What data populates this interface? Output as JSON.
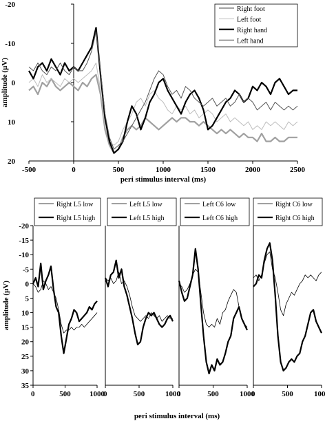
{
  "chart_data": [
    {
      "type": "line",
      "xlabel": "peri stimulus interval (ms)",
      "ylabel": "amplitude (µV)",
      "xlim": [
        -500,
        2500
      ],
      "ylim": [
        -20,
        20
      ],
      "y_inverted": true,
      "x_ticks": [
        -500,
        0,
        500,
        1000,
        1500,
        2000,
        2500
      ],
      "y_ticks": [
        -20,
        -10,
        0,
        10,
        20
      ],
      "y_tick_labels": [
        "-20",
        "-10",
        "0",
        "10",
        "20"
      ],
      "legend_position": "top-right",
      "series": [
        {
          "name": "Right foot",
          "color": "#a0a0a0",
          "width": 2.2,
          "x": [
            -500,
            -450,
            -400,
            -350,
            -300,
            -250,
            -200,
            -150,
            -100,
            -50,
            0,
            50,
            100,
            150,
            200,
            250,
            300,
            350,
            400,
            450,
            500,
            550,
            600,
            650,
            700,
            750,
            800,
            850,
            900,
            950,
            1000,
            1050,
            1100,
            1150,
            1200,
            1250,
            1300,
            1350,
            1400,
            1450,
            1500,
            1550,
            1600,
            1650,
            1700,
            1750,
            1800,
            1850,
            1900,
            1950,
            2000,
            2050,
            2100,
            2150,
            2200,
            2250,
            2300,
            2350,
            2400,
            2450,
            2500
          ],
          "y": [
            2,
            1,
            3,
            0,
            1,
            -1,
            1,
            2,
            1,
            0,
            1,
            2,
            0,
            1,
            -1,
            -2,
            3,
            12,
            16,
            18,
            17,
            14,
            12,
            11,
            12,
            11,
            9,
            10,
            11,
            12,
            11,
            10,
            9,
            10,
            9,
            9,
            10,
            10,
            11,
            10,
            11,
            12,
            13,
            12,
            13,
            12,
            13,
            14,
            13,
            14,
            14,
            15,
            13,
            15,
            15,
            14,
            15,
            15,
            14,
            14,
            14
          ]
        },
        {
          "name": "Left foot",
          "color": "#bdbdbd",
          "width": 1.0,
          "x": [
            -500,
            -450,
            -400,
            -350,
            -300,
            -250,
            -200,
            -150,
            -100,
            -50,
            0,
            50,
            100,
            150,
            200,
            250,
            300,
            350,
            400,
            450,
            500,
            550,
            600,
            650,
            700,
            750,
            800,
            850,
            900,
            950,
            1000,
            1050,
            1100,
            1150,
            1200,
            1250,
            1300,
            1350,
            1400,
            1450,
            1500,
            1550,
            1600,
            1650,
            1700,
            1750,
            1800,
            1850,
            1900,
            1950,
            2000,
            2050,
            2100,
            2150,
            2200,
            2250,
            2300,
            2350,
            2400,
            2450,
            2500
          ],
          "y": [
            0,
            -1,
            1,
            -2,
            0,
            -1,
            0,
            1,
            -1,
            0,
            -1,
            0,
            -1,
            -2,
            -3,
            -5,
            2,
            11,
            15,
            16,
            15,
            12,
            10,
            8,
            5,
            4,
            6,
            3,
            2,
            4,
            5,
            7,
            8,
            6,
            7,
            6,
            8,
            7,
            9,
            8,
            7,
            8,
            10,
            9,
            8,
            10,
            9,
            10,
            11,
            10,
            12,
            11,
            12,
            10,
            11,
            10,
            11,
            12,
            10,
            11,
            10
          ]
        },
        {
          "name": "Right hand",
          "color": "#000000",
          "width": 2.2,
          "x": [
            -500,
            -450,
            -400,
            -350,
            -300,
            -250,
            -200,
            -150,
            -100,
            -50,
            0,
            50,
            100,
            150,
            200,
            250,
            300,
            350,
            400,
            450,
            500,
            550,
            600,
            650,
            700,
            750,
            800,
            850,
            900,
            950,
            1000,
            1050,
            1100,
            1150,
            1200,
            1250,
            1300,
            1350,
            1400,
            1450,
            1500,
            1550,
            1600,
            1650,
            1700,
            1750,
            1800,
            1850,
            1900,
            1950,
            2000,
            2050,
            2100,
            2150,
            2200,
            2250,
            2300,
            2350,
            2400,
            2450,
            2500
          ],
          "y": [
            -3,
            -1,
            -4,
            -5,
            -3,
            -6,
            -4,
            -2,
            -5,
            -3,
            -4,
            -3,
            -5,
            -7,
            -9,
            -14,
            -2,
            9,
            15,
            18,
            17,
            15,
            10,
            6,
            8,
            12,
            9,
            5,
            3,
            0,
            -1,
            2,
            4,
            6,
            8,
            5,
            3,
            2,
            4,
            7,
            12,
            11,
            9,
            7,
            5,
            4,
            2,
            3,
            5,
            4,
            1,
            2,
            0,
            1,
            3,
            0,
            -1,
            1,
            3,
            2,
            2
          ]
        },
        {
          "name": "Left hand",
          "color": "#555555",
          "width": 1.0,
          "x": [
            -500,
            -450,
            -400,
            -350,
            -300,
            -250,
            -200,
            -150,
            -100,
            -50,
            0,
            50,
            100,
            150,
            200,
            250,
            300,
            350,
            400,
            450,
            500,
            550,
            600,
            650,
            700,
            750,
            800,
            850,
            900,
            950,
            1000,
            1050,
            1100,
            1150,
            1200,
            1250,
            1300,
            1350,
            1400,
            1450,
            1500,
            1550,
            1600,
            1650,
            1700,
            1750,
            1800,
            1850,
            1900,
            1950,
            2000,
            2050,
            2100,
            2150,
            2200,
            2250,
            2300,
            2350,
            2400,
            2450,
            2500
          ],
          "y": [
            -4,
            -3,
            -5,
            -3,
            -2,
            -4,
            -3,
            -5,
            -3,
            -2,
            -4,
            -3,
            -3,
            -5,
            -8,
            -13,
            -3,
            8,
            14,
            17,
            16,
            15,
            13,
            11,
            9,
            7,
            5,
            2,
            -1,
            -3,
            -2,
            1,
            3,
            2,
            4,
            1,
            2,
            4,
            5,
            6,
            5,
            4,
            6,
            5,
            4,
            6,
            5,
            3,
            5,
            4,
            5,
            7,
            6,
            5,
            7,
            5,
            6,
            7,
            6,
            7,
            6
          ]
        }
      ]
    },
    {
      "type": "line",
      "ylabel": "amplitude (µV)",
      "xlim": [
        0,
        1000
      ],
      "ylim": [
        -20,
        35
      ],
      "y_inverted": true,
      "x_ticks": [
        0,
        500,
        1000
      ],
      "y_ticks": [
        -20,
        -15,
        -10,
        -5,
        0,
        5,
        10,
        15,
        20,
        25,
        30,
        35
      ],
      "y_tick_labels": [
        "-20",
        "-15",
        "-10",
        "-5",
        "0",
        "5",
        "10",
        "15",
        "20",
        "25",
        "30",
        "35"
      ],
      "legend_position": "top",
      "series": [
        {
          "name": "Right L5 low",
          "color": "#000",
          "width": 0.8,
          "x": [
            0,
            40,
            80,
            120,
            160,
            200,
            240,
            280,
            320,
            360,
            400,
            440,
            480,
            520,
            560,
            600,
            640,
            680,
            720,
            760,
            800,
            840,
            880,
            920,
            960,
            1000
          ],
          "y": [
            0,
            1,
            3,
            2,
            -1,
            0,
            2,
            1,
            3,
            5,
            9,
            14,
            17,
            16,
            16,
            15,
            16,
            15,
            15,
            14,
            15,
            14,
            13,
            12,
            11,
            10
          ]
        },
        {
          "name": "Right L5 high",
          "color": "#000",
          "width": 2.2,
          "x": [
            0,
            40,
            80,
            120,
            160,
            200,
            240,
            280,
            320,
            360,
            400,
            440,
            480,
            520,
            560,
            600,
            640,
            680,
            720,
            760,
            800,
            840,
            880,
            920,
            960,
            1000
          ],
          "y": [
            0,
            -2,
            1,
            -7,
            2,
            -1,
            -3,
            -6,
            2,
            8,
            10,
            18,
            24,
            19,
            14,
            12,
            9,
            10,
            13,
            12,
            11,
            10,
            8,
            9,
            7,
            6
          ]
        }
      ]
    },
    {
      "type": "line",
      "xlim": [
        0,
        1000
      ],
      "ylim": [
        -20,
        35
      ],
      "y_inverted": true,
      "x_ticks": [
        0,
        500,
        1000
      ],
      "series": [
        {
          "name": "Left L5 low",
          "color": "#000",
          "width": 0.8,
          "x": [
            0,
            40,
            80,
            120,
            160,
            200,
            240,
            280,
            320,
            360,
            400,
            440,
            480,
            520,
            560,
            600,
            640,
            680,
            720,
            760,
            800,
            840,
            880,
            920,
            960,
            1000
          ],
          "y": [
            -2,
            -1,
            -2,
            0,
            -1,
            -4,
            0,
            -1,
            1,
            4,
            8,
            11,
            12,
            13,
            12,
            11,
            12,
            10,
            11,
            12,
            11,
            13,
            12,
            11,
            12,
            12
          ]
        },
        {
          "name": "Left L5 high",
          "color": "#000",
          "width": 2.2,
          "x": [
            0,
            40,
            80,
            120,
            160,
            200,
            240,
            280,
            320,
            360,
            400,
            440,
            480,
            520,
            560,
            600,
            640,
            680,
            720,
            760,
            800,
            840,
            880,
            920,
            960,
            1000
          ],
          "y": [
            -2,
            1,
            -3,
            -4,
            -8,
            -2,
            -5,
            1,
            4,
            8,
            12,
            17,
            21,
            20,
            15,
            12,
            10,
            11,
            10,
            12,
            14,
            15,
            14,
            12,
            11,
            13
          ]
        }
      ]
    },
    {
      "type": "line",
      "xlim": [
        0,
        1000
      ],
      "ylim": [
        -20,
        35
      ],
      "y_inverted": true,
      "x_ticks": [
        0,
        500,
        1000
      ],
      "series": [
        {
          "name": "Left C6 low",
          "color": "#000",
          "width": 0.8,
          "x": [
            0,
            40,
            80,
            120,
            160,
            200,
            240,
            280,
            320,
            360,
            400,
            440,
            480,
            520,
            560,
            600,
            640,
            680,
            720,
            760,
            800,
            840,
            880,
            920,
            960,
            1000
          ],
          "y": [
            0,
            1,
            3,
            2,
            0,
            -3,
            -5,
            -4,
            3,
            10,
            14,
            15,
            14,
            15,
            12,
            14,
            10,
            9,
            6,
            4,
            2,
            3,
            8,
            12,
            14,
            15
          ]
        },
        {
          "name": "Left C6 high",
          "color": "#000",
          "width": 2.2,
          "x": [
            0,
            40,
            80,
            120,
            160,
            200,
            240,
            280,
            320,
            360,
            400,
            440,
            480,
            520,
            560,
            600,
            640,
            680,
            720,
            760,
            800,
            840,
            880,
            920,
            960,
            1000
          ],
          "y": [
            -1,
            3,
            6,
            5,
            1,
            -3,
            -12,
            -5,
            7,
            18,
            27,
            31,
            28,
            30,
            26,
            28,
            27,
            24,
            20,
            18,
            12,
            10,
            8,
            12,
            14,
            16
          ]
        }
      ]
    },
    {
      "type": "line",
      "xlim": [
        0,
        1000
      ],
      "ylim": [
        -20,
        35
      ],
      "y_inverted": true,
      "x_ticks": [
        0,
        500,
        1000
      ],
      "series": [
        {
          "name": "Right C6 low",
          "color": "#000",
          "width": 0.8,
          "x": [
            0,
            40,
            80,
            120,
            160,
            200,
            240,
            280,
            320,
            360,
            400,
            440,
            480,
            520,
            560,
            600,
            640,
            680,
            720,
            760,
            800,
            840,
            880,
            920,
            960,
            1000
          ],
          "y": [
            -2,
            -3,
            -1,
            -3,
            -7,
            -10,
            -11,
            -5,
            -2,
            3,
            9,
            11,
            7,
            5,
            3,
            4,
            2,
            0,
            -1,
            -3,
            -2,
            -3,
            -2,
            -1,
            -3,
            -4
          ]
        },
        {
          "name": "Right C6 high",
          "color": "#000",
          "width": 2.2,
          "x": [
            0,
            40,
            80,
            120,
            160,
            200,
            240,
            280,
            320,
            360,
            400,
            440,
            480,
            520,
            560,
            600,
            640,
            680,
            720,
            760,
            800,
            840,
            880,
            920,
            960,
            1000
          ],
          "y": [
            1,
            0,
            -3,
            -2,
            -8,
            -12,
            -14,
            -8,
            4,
            18,
            27,
            30,
            29,
            27,
            26,
            27,
            25,
            24,
            20,
            18,
            14,
            10,
            9,
            13,
            15,
            17
          ]
        }
      ]
    }
  ],
  "bottom": {
    "xlabel": "peri stimulus interval (ms)"
  }
}
